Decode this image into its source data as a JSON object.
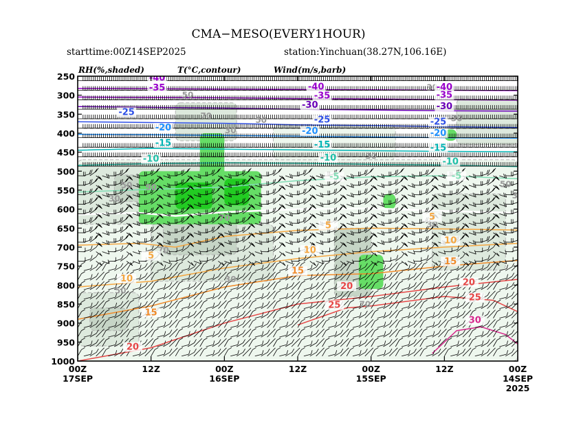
{
  "header": {
    "title": "CMA−MESO(EVERY1HOUR)",
    "starttime": "starttime:00Z14SEP2025",
    "station": "station:Yinchuan(38.27N,106.16E)"
  },
  "legend": {
    "rh": "RH(%,shaded)",
    "temp": "T(°C,contour)",
    "wind": "Wind(m/s,barb)"
  },
  "colors": {
    "rh30": "#eef7ee",
    "rh50": "#dde9dd",
    "rh70": "#c6d5c6",
    "rh90": "#66dd66",
    "rh98": "#22cc22",
    "contour_rh": "#b4b4b4",
    "barb": "#000000"
  },
  "chart_data": {
    "type": "heatmap",
    "x_axis": {
      "direction": "time decreasing to the right",
      "range_hours": [
        72,
        0
      ],
      "ticks": [
        {
          "hour": 72,
          "line1": "00Z",
          "line2": "17SEP",
          "line3": ""
        },
        {
          "hour": 60,
          "line1": "12Z",
          "line2": "",
          "line3": ""
        },
        {
          "hour": 48,
          "line1": "00Z",
          "line2": "16SEP",
          "line3": ""
        },
        {
          "hour": 36,
          "line1": "12Z",
          "line2": "",
          "line3": ""
        },
        {
          "hour": 24,
          "line1": "00Z",
          "line2": "15SEP",
          "line3": ""
        },
        {
          "hour": 12,
          "line1": "12Z",
          "line2": "",
          "line3": ""
        },
        {
          "hour": 0,
          "line1": "00Z",
          "line2": "14SEP",
          "line3": "2025"
        }
      ]
    },
    "y_axis": {
      "unit": "hPa",
      "range": [
        250,
        1000
      ],
      "ticks": [
        250,
        300,
        350,
        400,
        450,
        500,
        550,
        600,
        650,
        700,
        750,
        800,
        850,
        900,
        950,
        1000
      ]
    },
    "rh_levels": [
      30,
      50,
      70,
      90,
      98
    ],
    "rh_regions": [
      {
        "level": 30,
        "hours": [
          72,
          0
        ],
        "p": [
          470,
          1000
        ]
      },
      {
        "level": 30,
        "hours": [
          40,
          20
        ],
        "p": [
          380,
          470
        ]
      },
      {
        "level": 50,
        "hours": [
          72,
          52
        ],
        "p": [
          480,
          640
        ]
      },
      {
        "level": 50,
        "hours": [
          60,
          40
        ],
        "p": [
          640,
          790
        ]
      },
      {
        "level": 50,
        "hours": [
          72,
          62
        ],
        "p": [
          820,
          960
        ]
      },
      {
        "level": 50,
        "hours": [
          14,
          2
        ],
        "p": [
          560,
          760
        ]
      },
      {
        "level": 50,
        "hours": [
          10,
          0
        ],
        "p": [
          310,
          430
        ]
      },
      {
        "level": 50,
        "hours": [
          56,
          46
        ],
        "p": [
          320,
          420
        ]
      },
      {
        "level": 70,
        "hours": [
          66,
          52
        ],
        "p": [
          510,
          580
        ]
      },
      {
        "level": 70,
        "hours": [
          58,
          46
        ],
        "p": [
          570,
          720
        ]
      },
      {
        "level": 70,
        "hours": [
          30,
          24
        ],
        "p": [
          650,
          830
        ]
      },
      {
        "level": 70,
        "hours": [
          70,
          64
        ],
        "p": [
          860,
          920
        ]
      },
      {
        "level": 90,
        "hours": [
          62,
          42
        ],
        "p": [
          500,
          640
        ]
      },
      {
        "level": 90,
        "hours": [
          52,
          48
        ],
        "p": [
          400,
          520
        ]
      },
      {
        "level": 90,
        "hours": [
          26,
          22
        ],
        "p": [
          720,
          810
        ]
      },
      {
        "level": 90,
        "hours": [
          12,
          10
        ],
        "p": [
          390,
          420
        ]
      },
      {
        "level": 90,
        "hours": [
          22,
          20
        ],
        "p": [
          560,
          600
        ]
      },
      {
        "level": 98,
        "hours": [
          56,
          50
        ],
        "p": [
          530,
          600
        ]
      },
      {
        "level": 98,
        "hours": [
          48,
          44
        ],
        "p": [
          520,
          590
        ]
      }
    ],
    "rh_labels": [
      {
        "text": "30",
        "hours": 66,
        "p": 580
      },
      {
        "text": "50",
        "hours": 64,
        "p": 545
      },
      {
        "text": "90",
        "hours": 60,
        "p": 550
      },
      {
        "text": "70",
        "hours": 48,
        "p": 630
      },
      {
        "text": "50",
        "hours": 54,
        "p": 307
      },
      {
        "text": "70",
        "hours": 51,
        "p": 362
      },
      {
        "text": "30",
        "hours": 47,
        "p": 400
      },
      {
        "text": "50",
        "hours": 42,
        "p": 373
      },
      {
        "text": "30",
        "hours": 24,
        "p": 468
      },
      {
        "text": "30",
        "hours": 14,
        "p": 648
      },
      {
        "text": "50",
        "hours": 2,
        "p": 542
      },
      {
        "text": "30",
        "hours": 0,
        "p": 572
      },
      {
        "text": "30",
        "hours": 10,
        "p": 368
      },
      {
        "text": "30",
        "hours": 14,
        "p": 287
      },
      {
        "text": "50",
        "hours": 65,
        "p": 822
      },
      {
        "text": "70",
        "hours": 58,
        "p": 715
      },
      {
        "text": "30",
        "hours": 47,
        "p": 792
      },
      {
        "text": "70",
        "hours": 25,
        "p": 858
      }
    ],
    "temp_contours": [
      {
        "value": -40,
        "color": "#9900cc",
        "points": [
          [
            72,
            282
          ],
          [
            60,
            283
          ],
          [
            48,
            284
          ],
          [
            36,
            285
          ],
          [
            24,
            286
          ],
          [
            12,
            287
          ],
          [
            0,
            288
          ]
        ]
      },
      {
        "value": -35,
        "color": "#9900cc",
        "points": [
          [
            72,
            305
          ],
          [
            60,
            306
          ],
          [
            48,
            307
          ],
          [
            36,
            309
          ],
          [
            24,
            310
          ],
          [
            12,
            312
          ],
          [
            0,
            313
          ]
        ]
      },
      {
        "value": -30,
        "color": "#6a00b8",
        "points": [
          [
            72,
            330
          ],
          [
            60,
            332
          ],
          [
            48,
            334
          ],
          [
            36,
            337
          ],
          [
            24,
            339
          ],
          [
            12,
            341
          ],
          [
            0,
            342
          ]
        ]
      },
      {
        "value": -25,
        "color": "#2d4ee6",
        "points": [
          [
            72,
            370
          ],
          [
            60,
            372
          ],
          [
            48,
            374
          ],
          [
            36,
            378
          ],
          [
            24,
            380
          ],
          [
            12,
            383
          ],
          [
            0,
            385
          ]
        ]
      },
      {
        "value": -20,
        "color": "#1e90ff",
        "points": [
          [
            72,
            403
          ],
          [
            60,
            404
          ],
          [
            48,
            406
          ],
          [
            36,
            408
          ],
          [
            24,
            410
          ],
          [
            12,
            412
          ],
          [
            0,
            413
          ]
        ]
      },
      {
        "value": -15,
        "color": "#00b4b4",
        "points": [
          [
            72,
            445
          ],
          [
            60,
            440
          ],
          [
            48,
            442
          ],
          [
            36,
            444
          ],
          [
            24,
            446
          ],
          [
            12,
            448
          ],
          [
            0,
            449
          ]
        ]
      },
      {
        "value": -10,
        "color": "#20c0a8",
        "points": [
          [
            72,
            485
          ],
          [
            60,
            480
          ],
          [
            48,
            478
          ],
          [
            36,
            479
          ],
          [
            24,
            482
          ],
          [
            12,
            484
          ],
          [
            0,
            488
          ]
        ]
      },
      {
        "value": -5,
        "color": "#80dcb4",
        "points": [
          [
            72,
            555
          ],
          [
            60,
            548
          ],
          [
            48,
            542
          ],
          [
            36,
            525
          ],
          [
            24,
            515
          ],
          [
            12,
            512
          ],
          [
            0,
            520
          ]
        ]
      },
      {
        "value": 0,
        "color": "#ffffff",
        "points": [
          [
            72,
            614
          ],
          [
            62,
            610
          ],
          [
            56,
            618
          ],
          [
            48,
            608
          ],
          [
            36,
            600
          ],
          [
            24,
            598
          ],
          [
            12,
            605
          ],
          [
            0,
            610
          ]
        ]
      },
      {
        "value": 5,
        "color": "#f4a640",
        "points": [
          [
            72,
            695
          ],
          [
            62,
            690
          ],
          [
            56,
            700
          ],
          [
            48,
            672
          ],
          [
            36,
            656
          ],
          [
            24,
            650
          ],
          [
            12,
            652
          ],
          [
            0,
            655
          ]
        ]
      },
      {
        "value": 10,
        "color": "#f4a640",
        "points": [
          [
            72,
            805
          ],
          [
            60,
            790
          ],
          [
            48,
            755
          ],
          [
            36,
            730
          ],
          [
            24,
            712
          ],
          [
            12,
            700
          ],
          [
            0,
            690
          ]
        ]
      },
      {
        "value": 15,
        "color": "#f08a2a",
        "points": [
          [
            72,
            890
          ],
          [
            60,
            855
          ],
          [
            48,
            805
          ],
          [
            36,
            775
          ],
          [
            24,
            770
          ],
          [
            12,
            750
          ],
          [
            0,
            735
          ]
        ]
      },
      {
        "value": 20,
        "color": "#e64646",
        "points": [
          [
            72,
            1000
          ],
          [
            60,
            965
          ],
          [
            48,
            900
          ],
          [
            36,
            850
          ],
          [
            24,
            830
          ],
          [
            12,
            805
          ],
          [
            0,
            785
          ]
        ]
      },
      {
        "value": 25,
        "color": "#e64646",
        "points": [
          [
            36,
            905
          ],
          [
            28,
            860
          ],
          [
            24,
            855
          ],
          [
            12,
            830
          ],
          [
            4,
            840
          ],
          [
            0,
            870
          ]
        ]
      },
      {
        "value": 30,
        "color": "#d6288c",
        "points": [
          [
            14,
            980
          ],
          [
            10,
            920
          ],
          [
            6,
            910
          ],
          [
            2,
            930
          ],
          [
            0,
            955
          ]
        ]
      }
    ],
    "temp_labels": [
      {
        "text": "-40",
        "hours": 59,
        "p": 262,
        "color": "#9900cc"
      },
      {
        "text": "-35",
        "hours": 59,
        "p": 288,
        "color": "#9900cc"
      },
      {
        "text": "-40",
        "hours": 33,
        "p": 285,
        "color": "#9900cc"
      },
      {
        "text": "-35",
        "hours": 32,
        "p": 309,
        "color": "#9900cc"
      },
      {
        "text": "-30",
        "hours": 34,
        "p": 333,
        "color": "#6a00b8"
      },
      {
        "text": "-25",
        "hours": 64,
        "p": 352,
        "color": "#2d4ee6"
      },
      {
        "text": "-25",
        "hours": 32,
        "p": 372,
        "color": "#2d4ee6"
      },
      {
        "text": "-20",
        "hours": 58,
        "p": 393,
        "color": "#1e90ff"
      },
      {
        "text": "-20",
        "hours": 34,
        "p": 402,
        "color": "#1e90ff"
      },
      {
        "text": "-15",
        "hours": 58,
        "p": 433,
        "color": "#00b4b4"
      },
      {
        "text": "-15",
        "hours": 32,
        "p": 438,
        "color": "#00b4b4"
      },
      {
        "text": "-10",
        "hours": 60,
        "p": 475,
        "color": "#20c0a8"
      },
      {
        "text": "-10",
        "hours": 31,
        "p": 472,
        "color": "#20c0a8"
      },
      {
        "text": "-5",
        "hours": 30,
        "p": 522,
        "color": "#80dcb4"
      },
      {
        "text": "-40",
        "hours": 12,
        "p": 286,
        "color": "#9900cc"
      },
      {
        "text": "-35",
        "hours": 12,
        "p": 307,
        "color": "#9900cc"
      },
      {
        "text": "-30",
        "hours": 12,
        "p": 337,
        "color": "#6a00b8"
      },
      {
        "text": "-25",
        "hours": 13,
        "p": 377,
        "color": "#2d4ee6"
      },
      {
        "text": "-20",
        "hours": 13,
        "p": 407,
        "color": "#1e90ff"
      },
      {
        "text": "-15",
        "hours": 13,
        "p": 446,
        "color": "#00b4b4"
      },
      {
        "text": "-10",
        "hours": 11,
        "p": 482,
        "color": "#20c0a8"
      },
      {
        "text": "-5",
        "hours": 10,
        "p": 520,
        "color": "#80dcb4"
      },
      {
        "text": "5",
        "hours": 60,
        "p": 730,
        "color": "#f4a640"
      },
      {
        "text": "10",
        "hours": 64,
        "p": 790,
        "color": "#f4a640"
      },
      {
        "text": "15",
        "hours": 60,
        "p": 880,
        "color": "#f08a2a"
      },
      {
        "text": "20",
        "hours": 63,
        "p": 970,
        "color": "#e64646"
      },
      {
        "text": "5",
        "hours": 31,
        "p": 650,
        "color": "#f4a640"
      },
      {
        "text": "10",
        "hours": 34,
        "p": 715,
        "color": "#f4a640"
      },
      {
        "text": "15",
        "hours": 36,
        "p": 770,
        "color": "#f08a2a"
      },
      {
        "text": "20",
        "hours": 28,
        "p": 810,
        "color": "#e64646"
      },
      {
        "text": "25",
        "hours": 30,
        "p": 860,
        "color": "#e64646"
      },
      {
        "text": "5",
        "hours": 14,
        "p": 628,
        "color": "#f4a640"
      },
      {
        "text": "10",
        "hours": 11,
        "p": 690,
        "color": "#f4a640"
      },
      {
        "text": "15",
        "hours": 11,
        "p": 745,
        "color": "#f08a2a"
      },
      {
        "text": "20",
        "hours": 8,
        "p": 800,
        "color": "#e64646"
      },
      {
        "text": "25",
        "hours": 7,
        "p": 840,
        "color": "#e64646"
      },
      {
        "text": "30",
        "hours": 7,
        "p": 900,
        "color": "#d6288c"
      }
    ],
    "wind_barbs": {
      "levels": [
        262,
        287,
        312,
        337,
        362,
        387,
        412,
        437,
        462,
        487,
        512,
        537,
        562,
        587,
        612,
        637,
        662,
        687,
        712,
        737,
        762,
        787,
        812,
        837,
        862,
        887,
        912,
        937,
        962,
        987
      ],
      "hour_step": 1
    }
  }
}
